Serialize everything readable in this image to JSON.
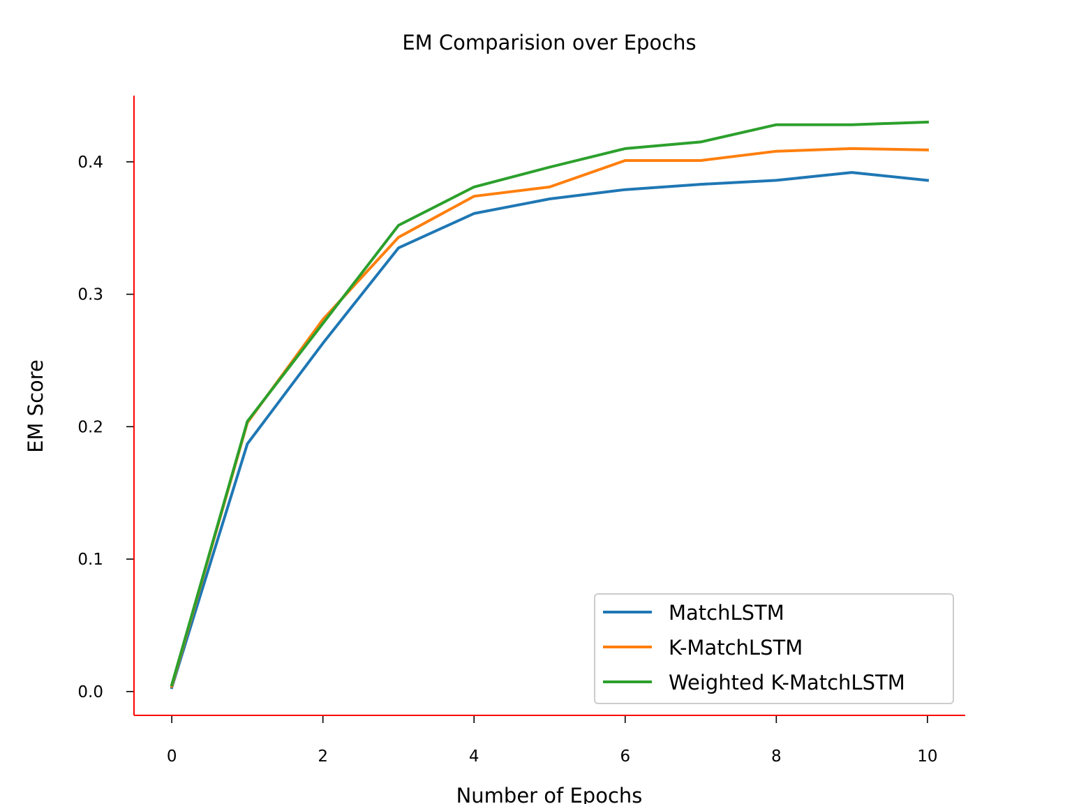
{
  "chart_data": {
    "type": "line",
    "title": "EM Comparision over Epochs",
    "xlabel": "Number of Epochs",
    "ylabel": "EM Score",
    "xlim": [
      -0.5,
      10.5
    ],
    "ylim": [
      -0.018,
      0.45
    ],
    "x_ticks": [
      0,
      2,
      4,
      6,
      8,
      10
    ],
    "x_tick_labels": [
      "0",
      "2",
      "4",
      "6",
      "8",
      "10"
    ],
    "y_ticks": [
      0.0,
      0.1,
      0.2,
      0.3,
      0.4
    ],
    "y_tick_labels": [
      "0.0",
      "0.1",
      "0.2",
      "0.3",
      "0.4"
    ],
    "grid": false,
    "legend_position": "lower-right",
    "axis_color": "#ff0000",
    "x": [
      0,
      1,
      2,
      3,
      4,
      5,
      6,
      7,
      8,
      9,
      10
    ],
    "series": [
      {
        "name": "MatchLSTM",
        "color": "#1f77b4",
        "values": [
          0.003,
          0.187,
          0.263,
          0.335,
          0.361,
          0.372,
          0.379,
          0.383,
          0.386,
          0.392,
          0.386
        ]
      },
      {
        "name": "K-MatchLSTM",
        "color": "#ff7f0e",
        "values": [
          0.004,
          0.203,
          0.281,
          0.343,
          0.374,
          0.381,
          0.401,
          0.401,
          0.408,
          0.41,
          0.409
        ]
      },
      {
        "name": "Weighted K-MatchLSTM",
        "color": "#2ca02c",
        "values": [
          0.005,
          0.204,
          0.278,
          0.352,
          0.381,
          0.396,
          0.41,
          0.415,
          0.428,
          0.428,
          0.43
        ]
      }
    ]
  }
}
